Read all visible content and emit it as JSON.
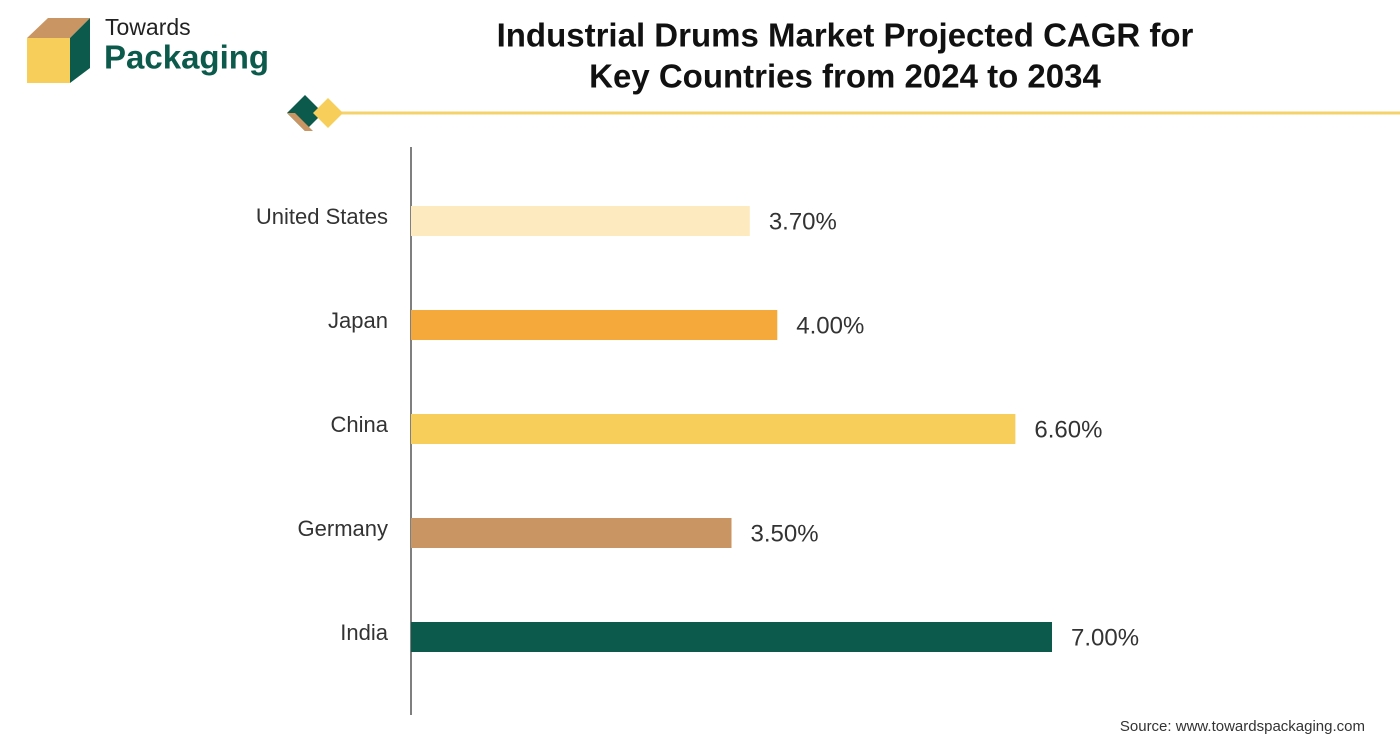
{
  "logo": {
    "line1": "Towards",
    "line2": "Packaging"
  },
  "chart_data": {
    "type": "bar",
    "orientation": "horizontal",
    "title": [
      "Industrial Drums Market Projected CAGR for",
      "Key Countries from 2024 to 2034"
    ],
    "categories": [
      "United States",
      "Japan",
      "China",
      "Germany",
      "India"
    ],
    "values": [
      3.7,
      4.0,
      6.6,
      3.5,
      7.0
    ],
    "value_labels": [
      "3.70%",
      "4.00%",
      "6.60%",
      "3.50%",
      "7.00%"
    ],
    "colors": [
      "#fdebbf",
      "#f5a93a",
      "#f8ce5a",
      "#c99563",
      "#0b5a4b"
    ],
    "source": "Source: www.towardspackaging.com"
  }
}
